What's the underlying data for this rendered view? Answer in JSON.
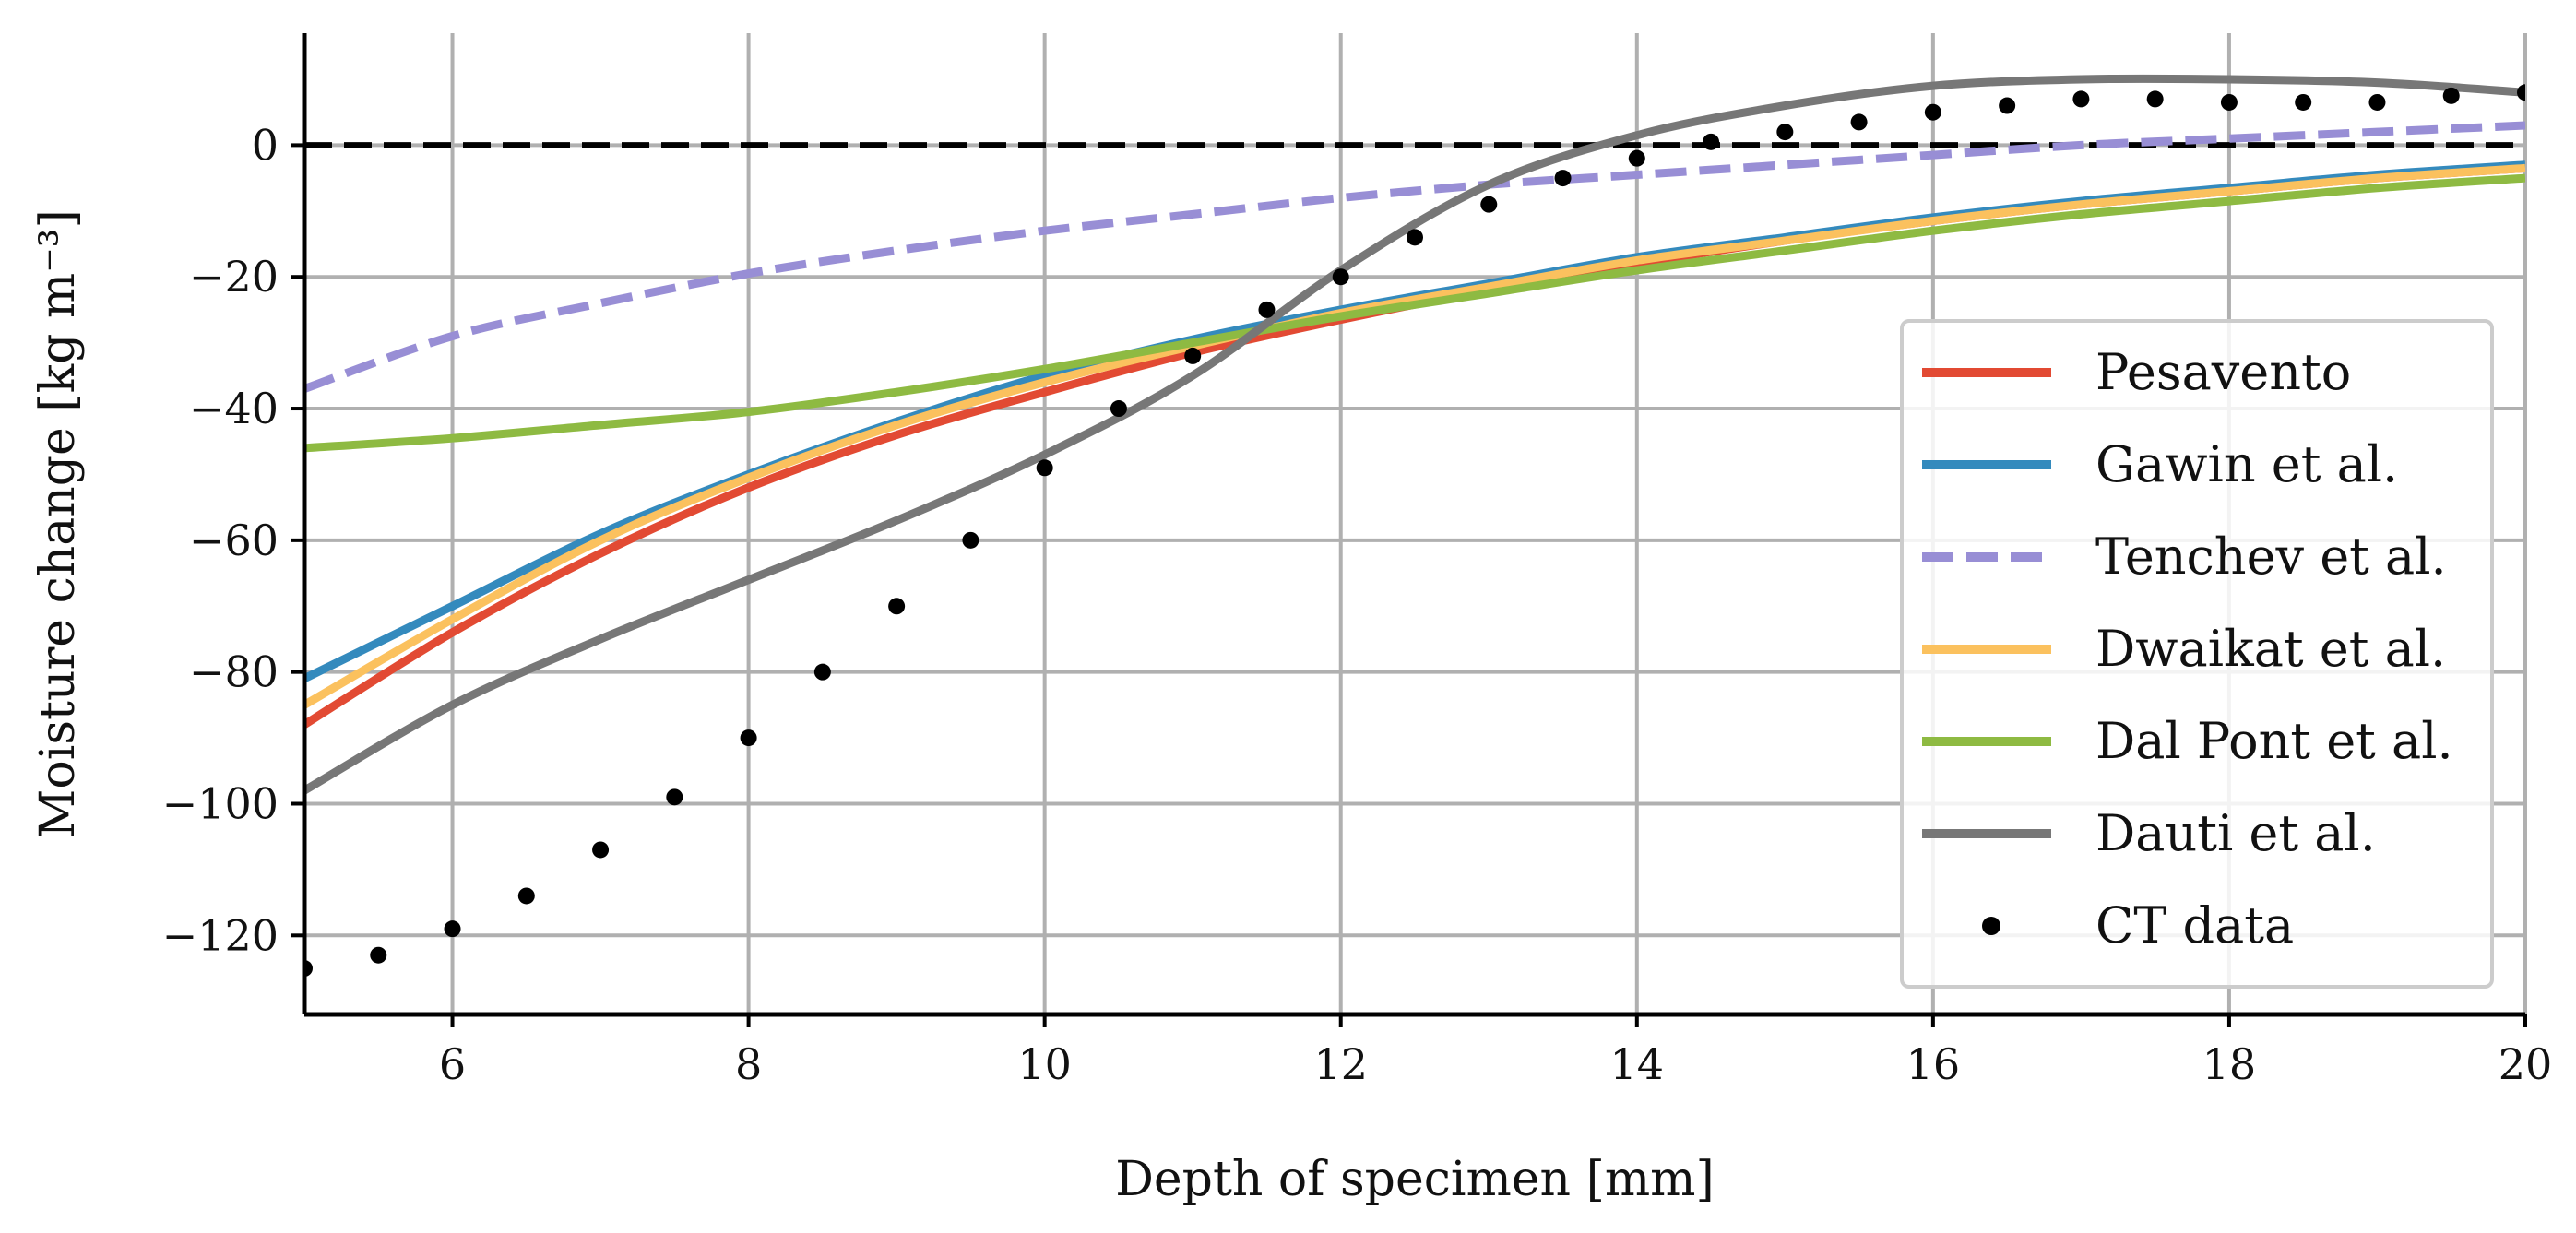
{
  "chart_data": {
    "type": "line",
    "title": "",
    "xlabel": "Depth of specimen [mm]",
    "ylabel": "Moisture change [kg m⁻³]",
    "xlim": [
      5,
      20
    ],
    "ylim": [
      -132,
      17
    ],
    "xticks": [
      6,
      8,
      10,
      12,
      14,
      16,
      18,
      20
    ],
    "yticks": [
      0,
      -20,
      -40,
      -60,
      -80,
      -100,
      -120
    ],
    "xtick_labels": [
      "6",
      "8",
      "10",
      "12",
      "14",
      "16",
      "18",
      "20"
    ],
    "ytick_labels": [
      "0",
      "−20",
      "−40",
      "−60",
      "−80",
      "−100",
      "−120"
    ],
    "grid": true,
    "legend_position": "lower-right",
    "reference_line": {
      "y": 0,
      "color": "#000000",
      "style": "dashed"
    },
    "series": [
      {
        "name": "Pesavento",
        "color": "#e24a33",
        "style": "solid",
        "x": [
          5,
          6,
          7,
          8,
          9,
          10,
          11,
          12,
          13,
          14,
          15,
          16,
          17,
          18,
          19,
          20
        ],
        "y": [
          -88,
          -74,
          -62,
          -52,
          -44,
          -37.5,
          -31.5,
          -26.5,
          -22,
          -18,
          -14.5,
          -11.5,
          -9,
          -7,
          -5,
          -3.5
        ]
      },
      {
        "name": "Gawin et al.",
        "color": "#348abd",
        "style": "solid",
        "x": [
          5,
          6,
          7,
          8,
          9,
          10,
          11,
          12,
          13,
          14,
          15,
          16,
          17,
          18,
          19,
          20
        ],
        "y": [
          -81,
          -70,
          -59,
          -50,
          -42,
          -35,
          -29.5,
          -25,
          -21,
          -17,
          -14,
          -11,
          -8.5,
          -6.5,
          -4.5,
          -3
        ]
      },
      {
        "name": "Tenchev et al.",
        "color": "#988ed5",
        "style": "dashed",
        "x": [
          5,
          6,
          7,
          8,
          9,
          10,
          11,
          12,
          13,
          14,
          15,
          16,
          17,
          18,
          19,
          20
        ],
        "y": [
          -37,
          -29,
          -24,
          -19.5,
          -16,
          -13,
          -10.5,
          -8,
          -6,
          -4.5,
          -3,
          -1.5,
          0,
          1,
          2,
          3
        ]
      },
      {
        "name": "Dwaikat et al.",
        "color": "#fbc15e",
        "style": "solid",
        "x": [
          5,
          6,
          7,
          8,
          9,
          10,
          11,
          12,
          13,
          14,
          15,
          16,
          17,
          18,
          19,
          20
        ],
        "y": [
          -85,
          -72,
          -60,
          -50.5,
          -42.5,
          -36,
          -30.5,
          -25.5,
          -21.5,
          -17.5,
          -14.5,
          -11.5,
          -9,
          -7,
          -5,
          -3.5
        ]
      },
      {
        "name": "Dal Pont et al.",
        "color": "#8eba42",
        "style": "solid",
        "x": [
          5,
          6,
          7,
          8,
          9,
          10,
          11,
          12,
          13,
          14,
          15,
          16,
          17,
          18,
          19,
          20
        ],
        "y": [
          -46,
          -44.5,
          -42.5,
          -40.5,
          -37.5,
          -34,
          -30,
          -26,
          -22.5,
          -19,
          -16,
          -13,
          -10.5,
          -8.5,
          -6.5,
          -5
        ]
      },
      {
        "name": "Dauti et al.",
        "color": "#777777",
        "style": "solid",
        "x": [
          5,
          6,
          7,
          8,
          9,
          10,
          11,
          12,
          13,
          14,
          15,
          16,
          17,
          18,
          19,
          20
        ],
        "y": [
          -98,
          -85,
          -75,
          -66,
          -57,
          -47,
          -35,
          -19,
          -6,
          1.5,
          6,
          9,
          10,
          10,
          9.5,
          8
        ]
      },
      {
        "name": "CT data",
        "color": "#000000",
        "style": "dotted",
        "x": [
          5,
          5.5,
          6,
          6.5,
          7,
          7.5,
          8,
          8.5,
          9,
          9.5,
          10,
          10.5,
          11,
          11.5,
          12,
          12.5,
          13,
          13.5,
          14,
          14.5,
          15,
          15.5,
          16,
          16.5,
          17,
          17.5,
          18,
          18.5,
          19,
          19.5,
          20
        ],
        "y": [
          -125,
          -123,
          -119,
          -114,
          -107,
          -99,
          -90,
          -80,
          -70,
          -60,
          -49,
          -40,
          -32,
          -25,
          -20,
          -14,
          -9,
          -5,
          -2,
          0.5,
          2,
          3.5,
          5,
          6,
          7,
          7,
          6.5,
          6.5,
          6.5,
          7.5,
          8
        ]
      }
    ]
  }
}
